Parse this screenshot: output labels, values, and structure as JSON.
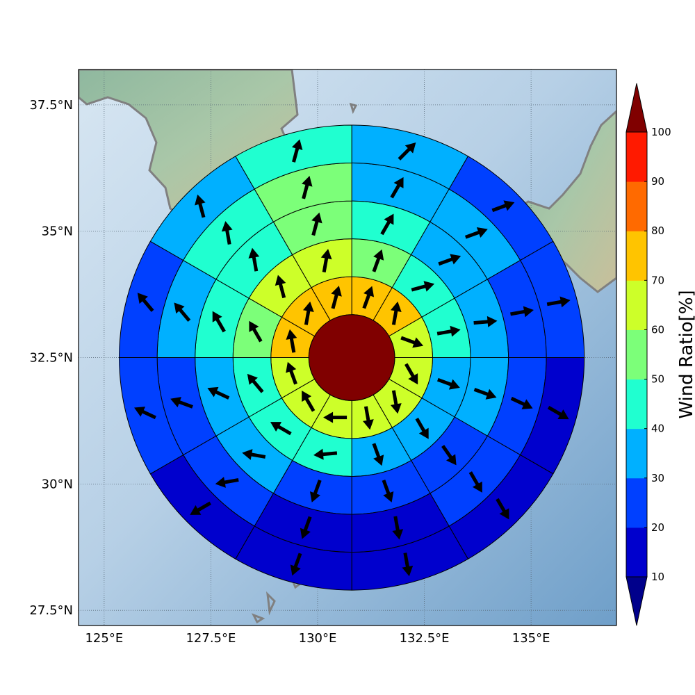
{
  "chart_data": {
    "type": "heatmap",
    "projection": "polar grid on map",
    "lon_range": [
      124.4,
      137.0
    ],
    "lat_range": [
      27.2,
      38.2
    ],
    "lon_ticks": [
      {
        "value": 125,
        "label": "125°E"
      },
      {
        "value": 127.5,
        "label": "127.5°E"
      },
      {
        "value": 130,
        "label": "130°E"
      },
      {
        "value": 132.5,
        "label": "132.5°E"
      },
      {
        "value": 135,
        "label": "135°E"
      }
    ],
    "lat_ticks": [
      {
        "value": 37.5,
        "label": "37.5°N"
      },
      {
        "value": 35,
        "label": "35°N"
      },
      {
        "value": 32.5,
        "label": "32.5°N"
      },
      {
        "value": 30,
        "label": "30°N"
      },
      {
        "value": 27.5,
        "label": "27.5°N"
      }
    ],
    "grid": true,
    "center": {
      "lon": 130.8,
      "lat": 32.5
    },
    "center_value": 100,
    "ring_outer_radii_deg_lat": [
      0.85,
      1.6,
      2.35,
      3.1,
      3.85,
      4.6
    ],
    "sector_angles_deg": [
      0,
      30,
      60,
      90,
      120,
      150,
      180,
      210,
      240,
      270,
      300,
      330,
      360
    ],
    "sector_order": "clockwise from north",
    "rings": [
      {
        "ring": 1,
        "values": [
          75,
          75,
          65,
          65,
          65,
          65,
          65,
          65,
          65,
          70,
          75,
          75
        ]
      },
      {
        "ring": 2,
        "values": [
          55,
          45,
          45,
          35,
          35,
          35,
          45,
          45,
          45,
          55,
          65,
          65
        ]
      },
      {
        "ring": 3,
        "values": [
          45,
          35,
          35,
          35,
          25,
          25,
          25,
          35,
          35,
          45,
          45,
          55
        ]
      },
      {
        "ring": 4,
        "values": [
          35,
          35,
          25,
          25,
          25,
          15,
          15,
          25,
          25,
          35,
          45,
          55
        ]
      },
      {
        "ring": 5,
        "values": [
          35,
          25,
          25,
          15,
          15,
          15,
          15,
          15,
          25,
          25,
          35,
          45
        ]
      },
      {
        "ring": 6,
        "values": [
          35,
          25,
          25,
          25,
          15,
          15,
          15,
          15,
          15,
          15,
          25,
          45
        ]
      }
    ],
    "arrows": [
      {
        "ring": 1,
        "dirs": [
          20,
          10,
          110,
          150,
          170,
          170,
          270,
          330,
          340,
          350,
          10,
          15
        ]
      },
      {
        "ring": 2,
        "dirs": [
          20,
          75,
          80,
          110,
          150,
          160,
          265,
          300,
          320,
          330,
          345,
          10
        ]
      },
      {
        "ring": 3,
        "dirs": [
          30,
          70,
          85,
          110,
          145,
          160,
          200,
          280,
          295,
          330,
          350,
          15
        ]
      },
      {
        "ring": 4,
        "dirs": [
          30,
          70,
          80,
          115,
          150,
          170,
          200,
          260,
          290,
          320,
          350,
          15
        ]
      },
      {
        "ring": 5,
        "dirs": [
          45,
          70,
          80,
          120,
          150,
          170,
          200,
          240,
          295,
          320,
          345,
          15
        ]
      },
      {
        "ring": 6,
        "dirs": [
          60,
          70,
          100,
          140,
          160,
          170,
          200,
          240,
          290,
          320,
          345,
          15
        ]
      }
    ],
    "colorbar": {
      "label": "Wind Ratio[%]",
      "ticks": [
        10,
        20,
        30,
        40,
        50,
        60,
        70,
        80,
        90,
        100
      ],
      "colors": [
        "#0000cd",
        "#0040ff",
        "#00b0ff",
        "#20ffd0",
        "#7cff79",
        "#cdff29",
        "#ffc400",
        "#ff6a00",
        "#ff1a00"
      ],
      "under_color": "#00008b",
      "over_color": "#800000",
      "extend": "both"
    }
  }
}
